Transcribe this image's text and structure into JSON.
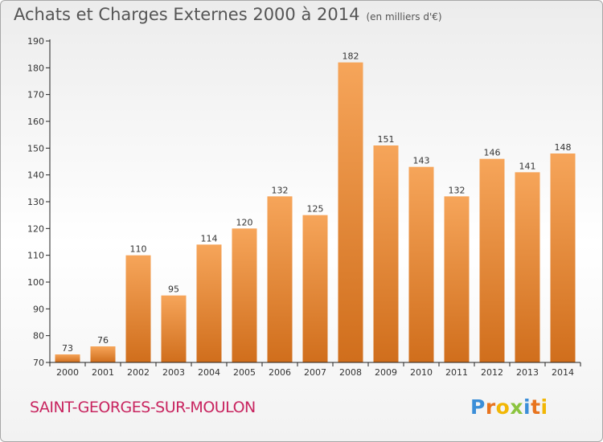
{
  "header": {
    "title": "Achats et Charges Externes 2000 à 2014",
    "subtitle": "(en milliers d'€)"
  },
  "footer": {
    "location": "SAINT-GEORGES-SUR-MOULON",
    "brand": "Proxiti"
  },
  "colors": {
    "bar_top": "#f6a55a",
    "bar_bottom": "#d06e1c",
    "location_text": "#c8245f"
  },
  "chart_data": {
    "type": "bar",
    "title": "Achats et Charges Externes 2000 à 2014",
    "subtitle": "(en milliers d'€)",
    "categories": [
      "2000",
      "2001",
      "2002",
      "2003",
      "2004",
      "2005",
      "2006",
      "2007",
      "2008",
      "2009",
      "2010",
      "2011",
      "2012",
      "2013",
      "2014"
    ],
    "values": [
      73,
      76,
      110,
      95,
      114,
      120,
      132,
      125,
      182,
      151,
      143,
      132,
      146,
      141,
      148
    ],
    "ylim": [
      70,
      190
    ],
    "yticks": [
      70,
      80,
      90,
      100,
      110,
      120,
      130,
      140,
      150,
      160,
      170,
      180,
      190
    ],
    "grid": false,
    "data_labels": true
  }
}
